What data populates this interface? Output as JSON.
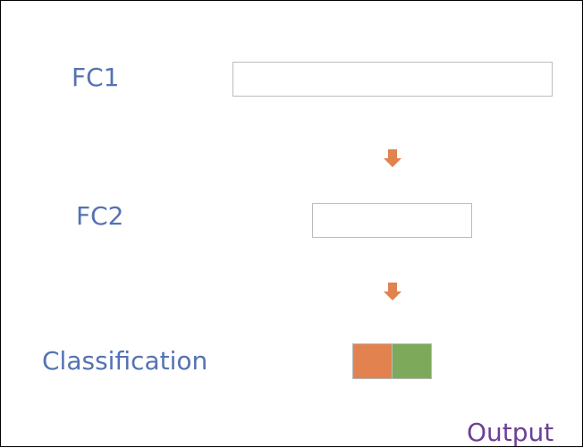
{
  "labels": {
    "fc1": "FC1",
    "fc2": "FC2",
    "classification": "Classification",
    "output": "Output"
  },
  "colors": {
    "label_blue": "#5472b4",
    "output_purple": "#6d3f96",
    "arrow_orange": "#e2824e",
    "class_orange": "#e2824e",
    "class_green": "#7daa5a",
    "box_border": "#bcbcbc"
  },
  "classification_cells": [
    {
      "color": "#e2824e"
    },
    {
      "color": "#7daa5a"
    }
  ]
}
